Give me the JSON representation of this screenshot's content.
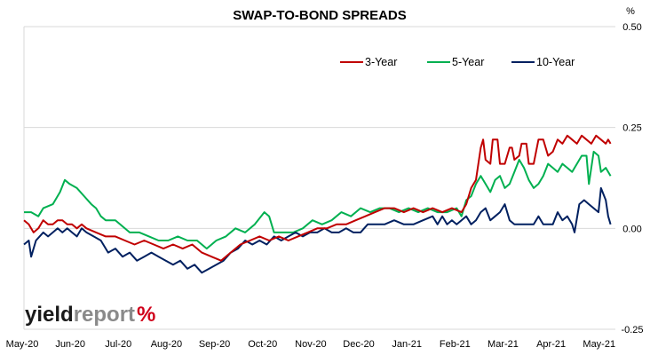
{
  "chart_data": {
    "type": "line",
    "title": "SWAP-TO-BOND SPREADS",
    "ylabel": "%",
    "ylim": [
      -0.25,
      0.5
    ],
    "y_ticks": [
      "0.50",
      "0.25",
      "0.00",
      "-0.25"
    ],
    "y_axis_position": "right",
    "gridlines": "horizontal",
    "legend_position": "top-right",
    "xlim": [
      0,
      12.3
    ],
    "x_tick_labels": [
      "May-20",
      "Jun-20",
      "Jul-20",
      "Aug-20",
      "Sep-20",
      "Oct-20",
      "Nov-20",
      "Dec-20",
      "Jan-21",
      "Feb-21",
      "Mar-21",
      "Apr-21",
      "May-21"
    ],
    "series": [
      {
        "name": "3-Year",
        "color": "#c00000",
        "points": [
          [
            0.0,
            0.02
          ],
          [
            0.1,
            0.01
          ],
          [
            0.2,
            -0.01
          ],
          [
            0.3,
            0.0
          ],
          [
            0.4,
            0.02
          ],
          [
            0.5,
            0.01
          ],
          [
            0.6,
            0.01
          ],
          [
            0.7,
            0.02
          ],
          [
            0.8,
            0.02
          ],
          [
            0.9,
            0.01
          ],
          [
            1.0,
            0.01
          ],
          [
            1.1,
            0.0
          ],
          [
            1.2,
            0.01
          ],
          [
            1.3,
            0.0
          ],
          [
            1.5,
            -0.01
          ],
          [
            1.7,
            -0.02
          ],
          [
            1.9,
            -0.02
          ],
          [
            2.1,
            -0.03
          ],
          [
            2.3,
            -0.04
          ],
          [
            2.5,
            -0.03
          ],
          [
            2.7,
            -0.04
          ],
          [
            2.9,
            -0.05
          ],
          [
            3.1,
            -0.04
          ],
          [
            3.3,
            -0.05
          ],
          [
            3.5,
            -0.04
          ],
          [
            3.7,
            -0.06
          ],
          [
            3.9,
            -0.07
          ],
          [
            4.1,
            -0.08
          ],
          [
            4.3,
            -0.06
          ],
          [
            4.5,
            -0.04
          ],
          [
            4.7,
            -0.03
          ],
          [
            4.9,
            -0.02
          ],
          [
            5.1,
            -0.03
          ],
          [
            5.3,
            -0.02
          ],
          [
            5.5,
            -0.03
          ],
          [
            5.7,
            -0.02
          ],
          [
            5.9,
            -0.01
          ],
          [
            6.1,
            0.0
          ],
          [
            6.3,
            0.0
          ],
          [
            6.5,
            0.01
          ],
          [
            6.7,
            0.01
          ],
          [
            6.9,
            0.02
          ],
          [
            7.1,
            0.03
          ],
          [
            7.3,
            0.04
          ],
          [
            7.5,
            0.05
          ],
          [
            7.7,
            0.05
          ],
          [
            7.9,
            0.04
          ],
          [
            8.1,
            0.05
          ],
          [
            8.3,
            0.04
          ],
          [
            8.5,
            0.05
          ],
          [
            8.7,
            0.04
          ],
          [
            8.9,
            0.05
          ],
          [
            9.1,
            0.04
          ],
          [
            9.2,
            0.06
          ],
          [
            9.3,
            0.1
          ],
          [
            9.4,
            0.12
          ],
          [
            9.5,
            0.2
          ],
          [
            9.55,
            0.22
          ],
          [
            9.6,
            0.17
          ],
          [
            9.7,
            0.16
          ],
          [
            9.75,
            0.22
          ],
          [
            9.85,
            0.22
          ],
          [
            9.9,
            0.16
          ],
          [
            10.0,
            0.16
          ],
          [
            10.1,
            0.2
          ],
          [
            10.15,
            0.2
          ],
          [
            10.2,
            0.17
          ],
          [
            10.3,
            0.18
          ],
          [
            10.35,
            0.21
          ],
          [
            10.45,
            0.21
          ],
          [
            10.5,
            0.16
          ],
          [
            10.6,
            0.16
          ],
          [
            10.7,
            0.22
          ],
          [
            10.8,
            0.22
          ],
          [
            10.9,
            0.18
          ],
          [
            11.0,
            0.19
          ],
          [
            11.1,
            0.22
          ],
          [
            11.2,
            0.21
          ],
          [
            11.3,
            0.23
          ],
          [
            11.4,
            0.22
          ],
          [
            11.5,
            0.21
          ],
          [
            11.6,
            0.23
          ],
          [
            11.7,
            0.22
          ],
          [
            11.8,
            0.21
          ],
          [
            11.9,
            0.23
          ],
          [
            12.0,
            0.22
          ],
          [
            12.1,
            0.21
          ],
          [
            12.15,
            0.22
          ],
          [
            12.2,
            0.21
          ]
        ]
      },
      {
        "name": "5-Year",
        "color": "#00b050",
        "points": [
          [
            0.0,
            0.04
          ],
          [
            0.15,
            0.04
          ],
          [
            0.3,
            0.03
          ],
          [
            0.4,
            0.05
          ],
          [
            0.6,
            0.06
          ],
          [
            0.75,
            0.09
          ],
          [
            0.85,
            0.12
          ],
          [
            0.95,
            0.11
          ],
          [
            1.1,
            0.1
          ],
          [
            1.25,
            0.08
          ],
          [
            1.4,
            0.06
          ],
          [
            1.5,
            0.05
          ],
          [
            1.6,
            0.03
          ],
          [
            1.7,
            0.02
          ],
          [
            1.9,
            0.02
          ],
          [
            2.0,
            0.01
          ],
          [
            2.2,
            -0.01
          ],
          [
            2.4,
            -0.01
          ],
          [
            2.6,
            -0.02
          ],
          [
            2.8,
            -0.03
          ],
          [
            3.0,
            -0.03
          ],
          [
            3.2,
            -0.02
          ],
          [
            3.4,
            -0.03
          ],
          [
            3.6,
            -0.03
          ],
          [
            3.8,
            -0.05
          ],
          [
            4.0,
            -0.03
          ],
          [
            4.2,
            -0.02
          ],
          [
            4.4,
            0.0
          ],
          [
            4.6,
            -0.01
          ],
          [
            4.8,
            0.01
          ],
          [
            5.0,
            0.04
          ],
          [
            5.1,
            0.03
          ],
          [
            5.2,
            -0.01
          ],
          [
            5.4,
            -0.01
          ],
          [
            5.6,
            -0.01
          ],
          [
            5.8,
            0.0
          ],
          [
            6.0,
            0.02
          ],
          [
            6.2,
            0.01
          ],
          [
            6.4,
            0.02
          ],
          [
            6.6,
            0.04
          ],
          [
            6.8,
            0.03
          ],
          [
            7.0,
            0.05
          ],
          [
            7.2,
            0.04
          ],
          [
            7.4,
            0.05
          ],
          [
            7.6,
            0.05
          ],
          [
            7.8,
            0.04
          ],
          [
            8.0,
            0.05
          ],
          [
            8.2,
            0.04
          ],
          [
            8.4,
            0.05
          ],
          [
            8.6,
            0.04
          ],
          [
            8.8,
            0.04
          ],
          [
            9.0,
            0.05
          ],
          [
            9.1,
            0.03
          ],
          [
            9.2,
            0.07
          ],
          [
            9.3,
            0.08
          ],
          [
            9.4,
            0.11
          ],
          [
            9.5,
            0.13
          ],
          [
            9.6,
            0.11
          ],
          [
            9.7,
            0.09
          ],
          [
            9.8,
            0.12
          ],
          [
            9.9,
            0.13
          ],
          [
            10.0,
            0.1
          ],
          [
            10.1,
            0.11
          ],
          [
            10.2,
            0.14
          ],
          [
            10.3,
            0.17
          ],
          [
            10.4,
            0.15
          ],
          [
            10.5,
            0.12
          ],
          [
            10.6,
            0.1
          ],
          [
            10.7,
            0.11
          ],
          [
            10.8,
            0.13
          ],
          [
            10.9,
            0.16
          ],
          [
            11.0,
            0.15
          ],
          [
            11.1,
            0.14
          ],
          [
            11.2,
            0.16
          ],
          [
            11.3,
            0.15
          ],
          [
            11.4,
            0.14
          ],
          [
            11.5,
            0.16
          ],
          [
            11.6,
            0.18
          ],
          [
            11.7,
            0.18
          ],
          [
            11.75,
            0.11
          ],
          [
            11.85,
            0.19
          ],
          [
            11.95,
            0.18
          ],
          [
            12.0,
            0.14
          ],
          [
            12.1,
            0.15
          ],
          [
            12.2,
            0.13
          ]
        ]
      },
      {
        "name": "10-Year",
        "color": "#002060",
        "points": [
          [
            0.0,
            -0.04
          ],
          [
            0.1,
            -0.03
          ],
          [
            0.15,
            -0.07
          ],
          [
            0.25,
            -0.03
          ],
          [
            0.4,
            -0.01
          ],
          [
            0.5,
            -0.02
          ],
          [
            0.6,
            -0.01
          ],
          [
            0.7,
            0.0
          ],
          [
            0.8,
            -0.01
          ],
          [
            0.9,
            0.0
          ],
          [
            1.0,
            -0.01
          ],
          [
            1.1,
            -0.02
          ],
          [
            1.2,
            0.0
          ],
          [
            1.3,
            -0.01
          ],
          [
            1.45,
            -0.02
          ],
          [
            1.6,
            -0.03
          ],
          [
            1.75,
            -0.06
          ],
          [
            1.9,
            -0.05
          ],
          [
            2.05,
            -0.07
          ],
          [
            2.2,
            -0.06
          ],
          [
            2.35,
            -0.08
          ],
          [
            2.5,
            -0.07
          ],
          [
            2.65,
            -0.06
          ],
          [
            2.8,
            -0.07
          ],
          [
            2.95,
            -0.08
          ],
          [
            3.1,
            -0.09
          ],
          [
            3.25,
            -0.08
          ],
          [
            3.4,
            -0.1
          ],
          [
            3.55,
            -0.09
          ],
          [
            3.7,
            -0.11
          ],
          [
            3.85,
            -0.1
          ],
          [
            4.0,
            -0.09
          ],
          [
            4.15,
            -0.08
          ],
          [
            4.3,
            -0.06
          ],
          [
            4.45,
            -0.05
          ],
          [
            4.6,
            -0.03
          ],
          [
            4.75,
            -0.04
          ],
          [
            4.9,
            -0.03
          ],
          [
            5.05,
            -0.04
          ],
          [
            5.2,
            -0.02
          ],
          [
            5.35,
            -0.03
          ],
          [
            5.5,
            -0.02
          ],
          [
            5.65,
            -0.01
          ],
          [
            5.8,
            -0.02
          ],
          [
            5.95,
            -0.01
          ],
          [
            6.1,
            -0.01
          ],
          [
            6.25,
            0.0
          ],
          [
            6.4,
            -0.01
          ],
          [
            6.55,
            -0.01
          ],
          [
            6.7,
            0.0
          ],
          [
            6.85,
            -0.01
          ],
          [
            7.0,
            -0.01
          ],
          [
            7.15,
            0.01
          ],
          [
            7.3,
            0.01
          ],
          [
            7.5,
            0.01
          ],
          [
            7.7,
            0.02
          ],
          [
            7.9,
            0.01
          ],
          [
            8.1,
            0.01
          ],
          [
            8.3,
            0.02
          ],
          [
            8.5,
            0.03
          ],
          [
            8.6,
            0.01
          ],
          [
            8.7,
            0.03
          ],
          [
            8.8,
            0.01
          ],
          [
            8.9,
            0.02
          ],
          [
            9.0,
            0.01
          ],
          [
            9.1,
            0.02
          ],
          [
            9.2,
            0.03
          ],
          [
            9.3,
            0.01
          ],
          [
            9.4,
            0.02
          ],
          [
            9.5,
            0.04
          ],
          [
            9.6,
            0.05
          ],
          [
            9.7,
            0.02
          ],
          [
            9.8,
            0.03
          ],
          [
            9.9,
            0.04
          ],
          [
            10.0,
            0.06
          ],
          [
            10.1,
            0.02
          ],
          [
            10.2,
            0.01
          ],
          [
            10.4,
            0.01
          ],
          [
            10.6,
            0.01
          ],
          [
            10.7,
            0.03
          ],
          [
            10.8,
            0.01
          ],
          [
            11.0,
            0.01
          ],
          [
            11.1,
            0.04
          ],
          [
            11.2,
            0.02
          ],
          [
            11.3,
            0.03
          ],
          [
            11.4,
            0.01
          ],
          [
            11.45,
            -0.01
          ],
          [
            11.55,
            0.06
          ],
          [
            11.65,
            0.07
          ],
          [
            11.75,
            0.06
          ],
          [
            11.85,
            0.05
          ],
          [
            11.95,
            0.04
          ],
          [
            12.0,
            0.1
          ],
          [
            12.1,
            0.07
          ],
          [
            12.15,
            0.03
          ],
          [
            12.2,
            0.01
          ]
        ]
      }
    ]
  },
  "watermark": {
    "part1": "yield",
    "part2": "report",
    "part3": "%"
  },
  "colors": {
    "three_year": "#c00000",
    "five_year": "#00b050",
    "ten_year": "#002060",
    "grid": "#d9d9d9"
  }
}
